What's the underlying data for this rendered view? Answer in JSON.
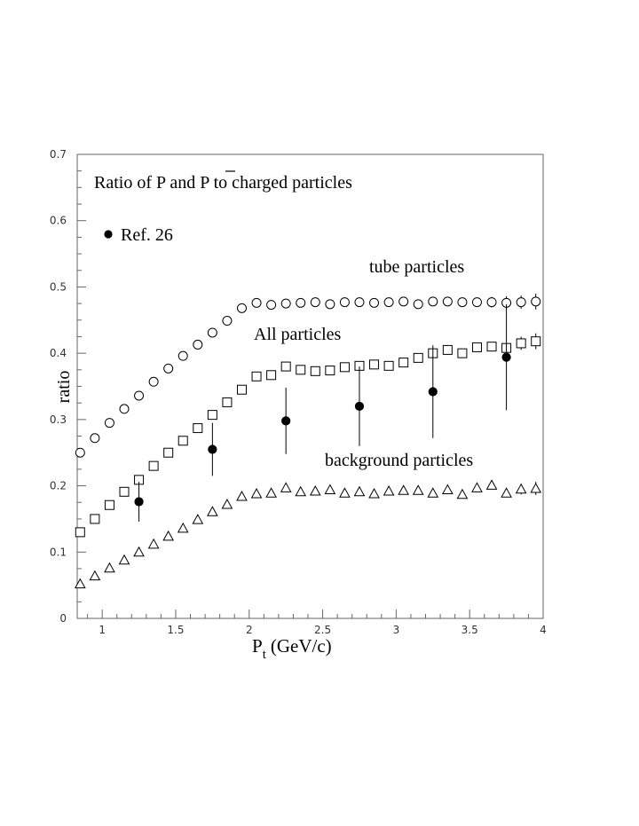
{
  "chart_data": {
    "type": "scatter",
    "title": "Ratio of P and P to charged particles",
    "ylabel": "ratio",
    "xlabel": {
      "main": "P",
      "sub": "t",
      "unit": "(GeV/c)"
    },
    "xlim": [
      0.83,
      4.0
    ],
    "ylim": [
      0,
      0.7
    ],
    "x_ticks": [
      1,
      1.5,
      2,
      2.5,
      3,
      3.5,
      4
    ],
    "x_tick_labels": [
      "1",
      "1.5",
      "2",
      "2.5",
      "3",
      "3.5",
      "4"
    ],
    "y_ticks": [
      0,
      0.1,
      0.2,
      0.3,
      0.4,
      0.5,
      0.6,
      0.7
    ],
    "y_tick_labels": [
      "0",
      "0.1",
      "0.2",
      "0.3",
      "0.4",
      "0.5",
      "0.6",
      "0.7"
    ],
    "legend": {
      "label": "Ref. 26",
      "marker": "filled-circle",
      "placement": "top-left"
    },
    "series": [
      {
        "name": "tube particles",
        "marker": "open-circle",
        "x": [
          0.85,
          0.95,
          1.05,
          1.15,
          1.25,
          1.35,
          1.45,
          1.55,
          1.65,
          1.75,
          1.85,
          1.95,
          2.05,
          2.15,
          2.25,
          2.35,
          2.45,
          2.55,
          2.65,
          2.75,
          2.85,
          2.95,
          3.05,
          3.15,
          3.25,
          3.35,
          3.45,
          3.55,
          3.65,
          3.75,
          3.85,
          3.95
        ],
        "y": [
          0.25,
          0.272,
          0.295,
          0.316,
          0.336,
          0.357,
          0.377,
          0.396,
          0.413,
          0.431,
          0.449,
          0.468,
          0.476,
          0.473,
          0.475,
          0.476,
          0.477,
          0.474,
          0.477,
          0.477,
          0.476,
          0.477,
          0.478,
          0.474,
          0.478,
          0.478,
          0.477,
          0.477,
          0.477,
          0.476,
          0.477,
          0.478
        ],
        "err": [
          0,
          0,
          0,
          0,
          0,
          0,
          0,
          0,
          0,
          0,
          0,
          0,
          0,
          0,
          0,
          0,
          0,
          0,
          0,
          0,
          0,
          0,
          0,
          0,
          0,
          0,
          0,
          0,
          0.008,
          0.01,
          0.01,
          0.012
        ]
      },
      {
        "name": "All particles",
        "marker": "open-square",
        "x": [
          0.85,
          0.95,
          1.05,
          1.15,
          1.25,
          1.35,
          1.45,
          1.55,
          1.65,
          1.75,
          1.85,
          1.95,
          2.05,
          2.15,
          2.25,
          2.35,
          2.45,
          2.55,
          2.65,
          2.75,
          2.85,
          2.95,
          3.05,
          3.15,
          3.25,
          3.35,
          3.45,
          3.55,
          3.65,
          3.75,
          3.85,
          3.95
        ],
        "y": [
          0.13,
          0.15,
          0.171,
          0.191,
          0.209,
          0.23,
          0.25,
          0.268,
          0.287,
          0.307,
          0.326,
          0.345,
          0.365,
          0.367,
          0.38,
          0.375,
          0.373,
          0.374,
          0.379,
          0.381,
          0.383,
          0.381,
          0.386,
          0.393,
          0.4,
          0.405,
          0.4,
          0.409,
          0.41,
          0.408,
          0.415,
          0.418
        ],
        "err": [
          0,
          0,
          0,
          0,
          0,
          0,
          0,
          0,
          0,
          0,
          0,
          0,
          0,
          0,
          0,
          0,
          0,
          0,
          0,
          0,
          0,
          0,
          0,
          0,
          0,
          0,
          0,
          0,
          0,
          0,
          0.01,
          0.012
        ]
      },
      {
        "name": "background particles",
        "marker": "open-triangle",
        "x": [
          0.85,
          0.95,
          1.05,
          1.15,
          1.25,
          1.35,
          1.45,
          1.55,
          1.65,
          1.75,
          1.85,
          1.95,
          2.05,
          2.15,
          2.25,
          2.35,
          2.45,
          2.55,
          2.65,
          2.75,
          2.85,
          2.95,
          3.05,
          3.15,
          3.25,
          3.35,
          3.45,
          3.55,
          3.65,
          3.75,
          3.85,
          3.95
        ],
        "y": [
          0.052,
          0.064,
          0.076,
          0.088,
          0.1,
          0.112,
          0.124,
          0.136,
          0.149,
          0.161,
          0.172,
          0.184,
          0.188,
          0.189,
          0.197,
          0.191,
          0.192,
          0.194,
          0.189,
          0.191,
          0.188,
          0.192,
          0.193,
          0.193,
          0.189,
          0.194,
          0.187,
          0.197,
          0.201,
          0.189,
          0.195,
          0.196
        ],
        "err": [
          0,
          0,
          0,
          0,
          0,
          0,
          0,
          0,
          0,
          0,
          0,
          0,
          0,
          0,
          0,
          0,
          0,
          0,
          0,
          0,
          0,
          0,
          0,
          0,
          0,
          0,
          0,
          0,
          0,
          0,
          0.008,
          0.01
        ]
      },
      {
        "name": "Ref. 26",
        "marker": "filled-circle",
        "x": [
          1.25,
          1.75,
          2.25,
          2.75,
          3.25,
          3.75
        ],
        "y": [
          0.176,
          0.255,
          0.298,
          0.32,
          0.342,
          0.394
        ],
        "err": [
          0.03,
          0.04,
          0.05,
          0.06,
          0.07,
          0.08
        ]
      }
    ]
  }
}
